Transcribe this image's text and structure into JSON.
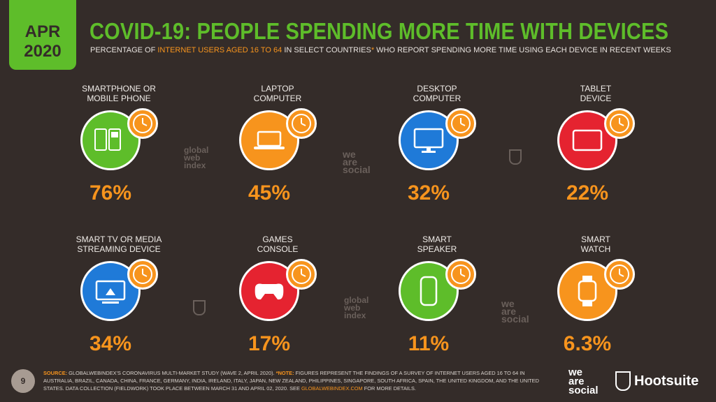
{
  "header": {
    "date_line1": "APR",
    "date_line2": "2020",
    "title": "COVID-19: PEOPLE SPENDING MORE TIME WITH DEVICES",
    "subtitle_pre": "PERCENTAGE OF ",
    "subtitle_highlight": "INTERNET USERS AGED 16 TO 64",
    "subtitle_post": " IN SELECT COUNTRIES",
    "subtitle_asterisk": "*",
    "subtitle_end": " WHO REPORT SPENDING MORE TIME USING EACH DEVICE IN RECENT WEEKS"
  },
  "colors": {
    "background": "#342c29",
    "accent_green": "#5ebd2a",
    "accent_orange": "#f7941d",
    "blue": "#1f7ad8",
    "red": "#e52330"
  },
  "devices": [
    {
      "label_1": "SMARTPHONE OR",
      "label_2": "MOBILE PHONE",
      "value": "76%",
      "color": "#5ebd2a",
      "icon": "phones-icon"
    },
    {
      "label_1": "LAPTOP",
      "label_2": "COMPUTER",
      "value": "45%",
      "color": "#f7941d",
      "icon": "laptop-icon"
    },
    {
      "label_1": "DESKTOP",
      "label_2": "COMPUTER",
      "value": "32%",
      "color": "#1f7ad8",
      "icon": "desktop-icon"
    },
    {
      "label_1": "TABLET",
      "label_2": "DEVICE",
      "value": "22%",
      "color": "#e52330",
      "icon": "tablet-icon"
    },
    {
      "label_1": "SMART TV OR MEDIA",
      "label_2": "STREAMING DEVICE",
      "value": "34%",
      "color": "#1f7ad8",
      "icon": "tv-icon"
    },
    {
      "label_1": "GAMES",
      "label_2": "CONSOLE",
      "value": "17%",
      "color": "#e52330",
      "icon": "gamepad-icon"
    },
    {
      "label_1": "SMART",
      "label_2": "SPEAKER",
      "value": "11%",
      "color": "#5ebd2a",
      "icon": "speaker-icon"
    },
    {
      "label_1": "SMART",
      "label_2": "WATCH",
      "value": "6.3%",
      "color": "#f7941d",
      "icon": "watch-icon"
    }
  ],
  "watermarks": {
    "gwi": "global web index",
    "ws": "we are social"
  },
  "footer": {
    "page": "9",
    "source_label": "SOURCE:",
    "source_text": " GLOBALWEBINDEX'S CORONAVIRUS MULTI-MARKET STUDY (WAVE 2, APRIL 2020). ",
    "note_label": "*NOTE:",
    "note_text": " FIGURES REPRESENT THE FINDINGS OF A SURVEY OF INTERNET USERS AGED 16 TO 64 IN AUSTRALIA, BRAZIL, CANADA, CHINA, FRANCE, GERMANY, INDIA, IRELAND, ITALY, JAPAN, NEW ZEALAND, PHILIPPINES, SINGAPORE, SOUTH AFRICA, SPAIN, THE UNITED KINGDOM, AND THE UNITED STATES. DATA COLLECTION (FIELDWORK) TOOK PLACE BETWEEN MARCH 31 AND APRIL 02, 2020. SEE ",
    "link": "GLOBALWEBINDEX.COM",
    "end": " FOR MORE DETAILS.",
    "logo_ws": "we are social",
    "logo_hs": "Hootsuite"
  }
}
